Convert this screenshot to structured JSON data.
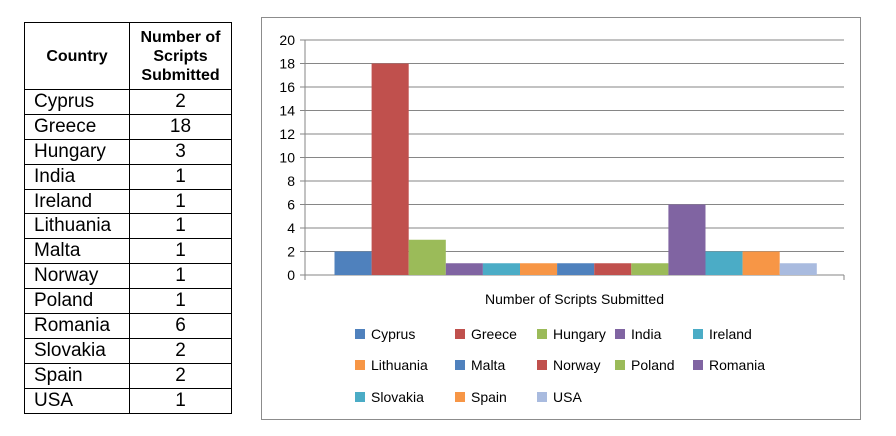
{
  "table": {
    "headers": [
      "Country",
      "Number of Scripts Submitted"
    ],
    "rows": [
      {
        "country": "Cyprus",
        "count": "2"
      },
      {
        "country": "Greece",
        "count": "18"
      },
      {
        "country": "Hungary",
        "count": "3"
      },
      {
        "country": "India",
        "count": "1"
      },
      {
        "country": "Ireland",
        "count": "1"
      },
      {
        "country": "Lithuania",
        "count": "1"
      },
      {
        "country": "Malta",
        "count": "1"
      },
      {
        "country": "Norway",
        "count": "1"
      },
      {
        "country": "Poland",
        "count": "1"
      },
      {
        "country": "Romania",
        "count": "6"
      },
      {
        "country": "Slovakia",
        "count": "2"
      },
      {
        "country": "Spain",
        "count": "2"
      },
      {
        "country": "USA",
        "count": "1"
      }
    ]
  },
  "chart_data": {
    "type": "bar",
    "categories": [
      "Number of Scripts Submitted"
    ],
    "xlabel": "Number of Scripts Submitted",
    "ylabel": "",
    "ylim": [
      0,
      20
    ],
    "yticks": [
      0,
      2,
      4,
      6,
      8,
      10,
      12,
      14,
      16,
      18,
      20
    ],
    "grid": true,
    "legend_position": "bottom",
    "series": [
      {
        "name": "Cyprus",
        "values": [
          2
        ],
        "color": "#4f81bd"
      },
      {
        "name": "Greece",
        "values": [
          18
        ],
        "color": "#c0504d"
      },
      {
        "name": "Hungary",
        "values": [
          3
        ],
        "color": "#9bbb59"
      },
      {
        "name": "India",
        "values": [
          1
        ],
        "color": "#8064a2"
      },
      {
        "name": "Ireland",
        "values": [
          1
        ],
        "color": "#4bacc6"
      },
      {
        "name": "Lithuania",
        "values": [
          1
        ],
        "color": "#f79646"
      },
      {
        "name": "Malta",
        "values": [
          1
        ],
        "color": "#4f81bd"
      },
      {
        "name": "Norway",
        "values": [
          1
        ],
        "color": "#c0504d"
      },
      {
        "name": "Poland",
        "values": [
          1
        ],
        "color": "#9bbb59"
      },
      {
        "name": "Romania",
        "values": [
          6
        ],
        "color": "#8064a2"
      },
      {
        "name": "Slovakia",
        "values": [
          2
        ],
        "color": "#4bacc6"
      },
      {
        "name": "Spain",
        "values": [
          2
        ],
        "color": "#f79646"
      },
      {
        "name": "USA",
        "values": [
          1
        ],
        "color": "#a9bbdf"
      }
    ]
  }
}
